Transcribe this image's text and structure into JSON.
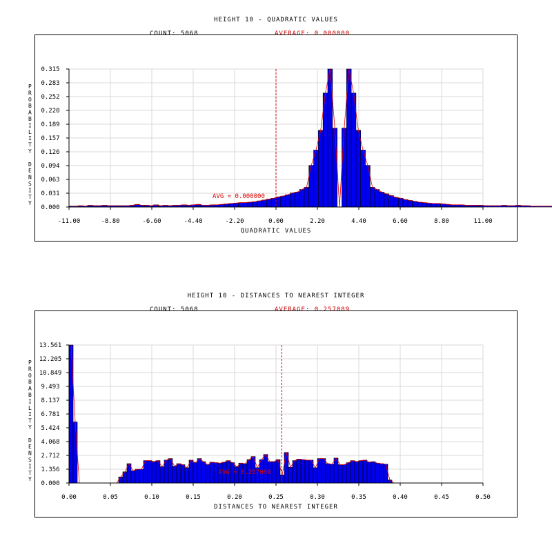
{
  "chart_data": [
    {
      "type": "bar",
      "title": "HEIGHT 10 - QUADRATIC VALUES",
      "count_label": "COUNT: 5068",
      "average_label": "AVERAGE: 0.000000",
      "avg_marker_label": "AVG = 0.000000",
      "xlabel": "QUADRATIC VALUES",
      "ylabel": "PROBABILITY DENSITY",
      "xlim": [
        -11.0,
        11.0
      ],
      "ylim": [
        0.0,
        0.315
      ],
      "x_ticks": [
        "-11.00",
        "-8.80",
        "-6.60",
        "-4.40",
        "-2.20",
        "0.00",
        "2.20",
        "4.40",
        "6.60",
        "8.80",
        "11.00"
      ],
      "y_ticks": [
        "0.000",
        "0.031",
        "0.063",
        "0.094",
        "0.126",
        "0.157",
        "0.189",
        "0.220",
        "0.252",
        "0.283",
        "0.315"
      ],
      "average": 0.0,
      "bin_start": -11.0,
      "bin_width": 0.25,
      "values": [
        0.002,
        0.002,
        0.003,
        0.002,
        0.004,
        0.003,
        0.003,
        0.004,
        0.003,
        0.003,
        0.003,
        0.003,
        0.003,
        0.004,
        0.006,
        0.004,
        0.004,
        0.003,
        0.005,
        0.003,
        0.004,
        0.003,
        0.004,
        0.004,
        0.005,
        0.004,
        0.005,
        0.006,
        0.004,
        0.004,
        0.005,
        0.005,
        0.006,
        0.007,
        0.008,
        0.009,
        0.01,
        0.01,
        0.011,
        0.012,
        0.014,
        0.016,
        0.018,
        0.02,
        0.023,
        0.025,
        0.028,
        0.032,
        0.034,
        0.04,
        0.045,
        0.095,
        0.13,
        0.175,
        0.26,
        0.315,
        0.18,
        0.0,
        0.18,
        0.315,
        0.26,
        0.175,
        0.13,
        0.095,
        0.045,
        0.04,
        0.034,
        0.03,
        0.026,
        0.022,
        0.02,
        0.017,
        0.015,
        0.013,
        0.011,
        0.01,
        0.009,
        0.008,
        0.008,
        0.007,
        0.006,
        0.005,
        0.005,
        0.005,
        0.004,
        0.004,
        0.004,
        0.004,
        0.003,
        0.003,
        0.003,
        0.003,
        0.004,
        0.003,
        0.003,
        0.004,
        0.003,
        0.003,
        0.002,
        0.002,
        0.002,
        0.002,
        0.002,
        0.002,
        0.002,
        0.002,
        0.002,
        0.002
      ],
      "grid": true,
      "bar_color": "#0000ee",
      "line_color": "#dd0000"
    },
    {
      "type": "bar",
      "title": "HEIGHT 10 - DISTANCES TO NEAREST INTEGER",
      "count_label": "COUNT: 5068",
      "average_label": "AVERAGE: 0.257089",
      "avg_marker_label": "AVG = 0.257089",
      "xlabel": "DISTANCES TO NEAREST INTEGER",
      "ylabel": "PROBABILITY DENSITY",
      "xlim": [
        0.0,
        0.5
      ],
      "ylim": [
        0.0,
        13.561
      ],
      "x_ticks": [
        "0.00",
        "0.05",
        "0.10",
        "0.15",
        "0.20",
        "0.25",
        "0.30",
        "0.35",
        "0.40",
        "0.45",
        "0.50"
      ],
      "y_ticks": [
        "0.000",
        "1.356",
        "2.712",
        "4.068",
        "5.424",
        "6.781",
        "8.137",
        "9.493",
        "10.849",
        "12.205",
        "13.561"
      ],
      "average": 0.257089,
      "bin_start": 0.0,
      "bin_width": 0.005,
      "values": [
        13.561,
        6.0,
        0.0,
        0.0,
        0.0,
        0.0,
        0.0,
        0.0,
        0.0,
        0.0,
        0.0,
        0.0,
        0.6,
        1.1,
        1.9,
        1.2,
        1.35,
        1.35,
        2.2,
        2.2,
        2.1,
        2.2,
        1.6,
        2.25,
        2.4,
        1.65,
        1.9,
        1.8,
        1.5,
        2.25,
        2.0,
        2.4,
        2.1,
        1.8,
        2.05,
        2.0,
        1.95,
        2.05,
        2.2,
        2.0,
        1.6,
        1.95,
        1.9,
        2.3,
        2.6,
        1.5,
        2.3,
        2.8,
        2.1,
        2.1,
        2.3,
        0.8,
        3.0,
        1.55,
        2.2,
        2.35,
        2.3,
        2.25,
        2.25,
        1.5,
        2.4,
        2.4,
        1.9,
        1.85,
        2.45,
        1.8,
        1.8,
        2.0,
        2.2,
        2.1,
        2.2,
        2.25,
        2.05,
        2.1,
        1.95,
        1.9,
        1.85,
        0.3,
        0.0
      ],
      "grid": true,
      "bar_color": "#0000ee",
      "line_color": "#dd0000"
    }
  ]
}
